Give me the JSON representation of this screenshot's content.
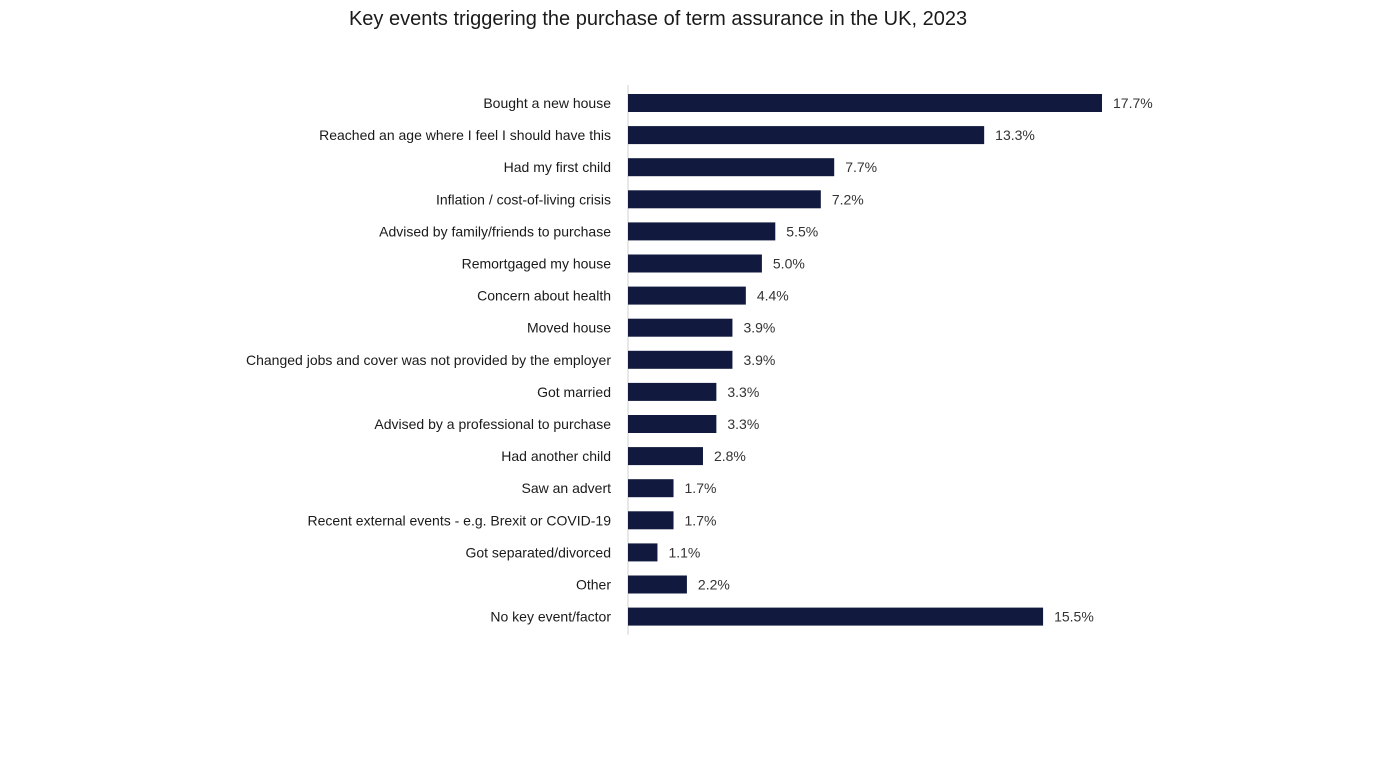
{
  "chart_data": {
    "type": "bar",
    "orientation": "horizontal",
    "title": "Key events triggering the purchase of term assurance in the UK, 2023",
    "xlabel": "",
    "ylabel": "",
    "grid": false,
    "legend": "none",
    "xlim": [
      0,
      20
    ],
    "categories": [
      "Bought a new house",
      "Reached an age where I feel I should have this",
      "Had my first child",
      "Inflation / cost-of-living crisis",
      "Advised by family/friends to purchase",
      "Remortgaged my house",
      "Concern about health",
      "Moved house",
      "Changed jobs and cover was not provided by the employer",
      "Got married",
      "Advised by a professional to purchase",
      "Had another child",
      "Saw an advert",
      "Recent external events - e.g. Brexit or COVID-19",
      "Got separated/divorced",
      "Other",
      "No key event/factor"
    ],
    "values": [
      17.7,
      13.3,
      7.7,
      7.2,
      5.5,
      5.0,
      4.4,
      3.9,
      3.9,
      3.3,
      3.3,
      2.8,
      1.7,
      1.7,
      1.1,
      2.2,
      15.5
    ],
    "data_labels": [
      "17.7%",
      "13.3%",
      "7.7%",
      "7.2%",
      "5.5%",
      "5.0%",
      "4.4%",
      "3.9%",
      "3.9%",
      "3.3%",
      "3.3%",
      "2.8%",
      "1.7%",
      "1.7%",
      "1.1%",
      "2.2%",
      "15.5%"
    ],
    "bar_color": "#111a3e",
    "axis_color": "#d0d0d0"
  }
}
